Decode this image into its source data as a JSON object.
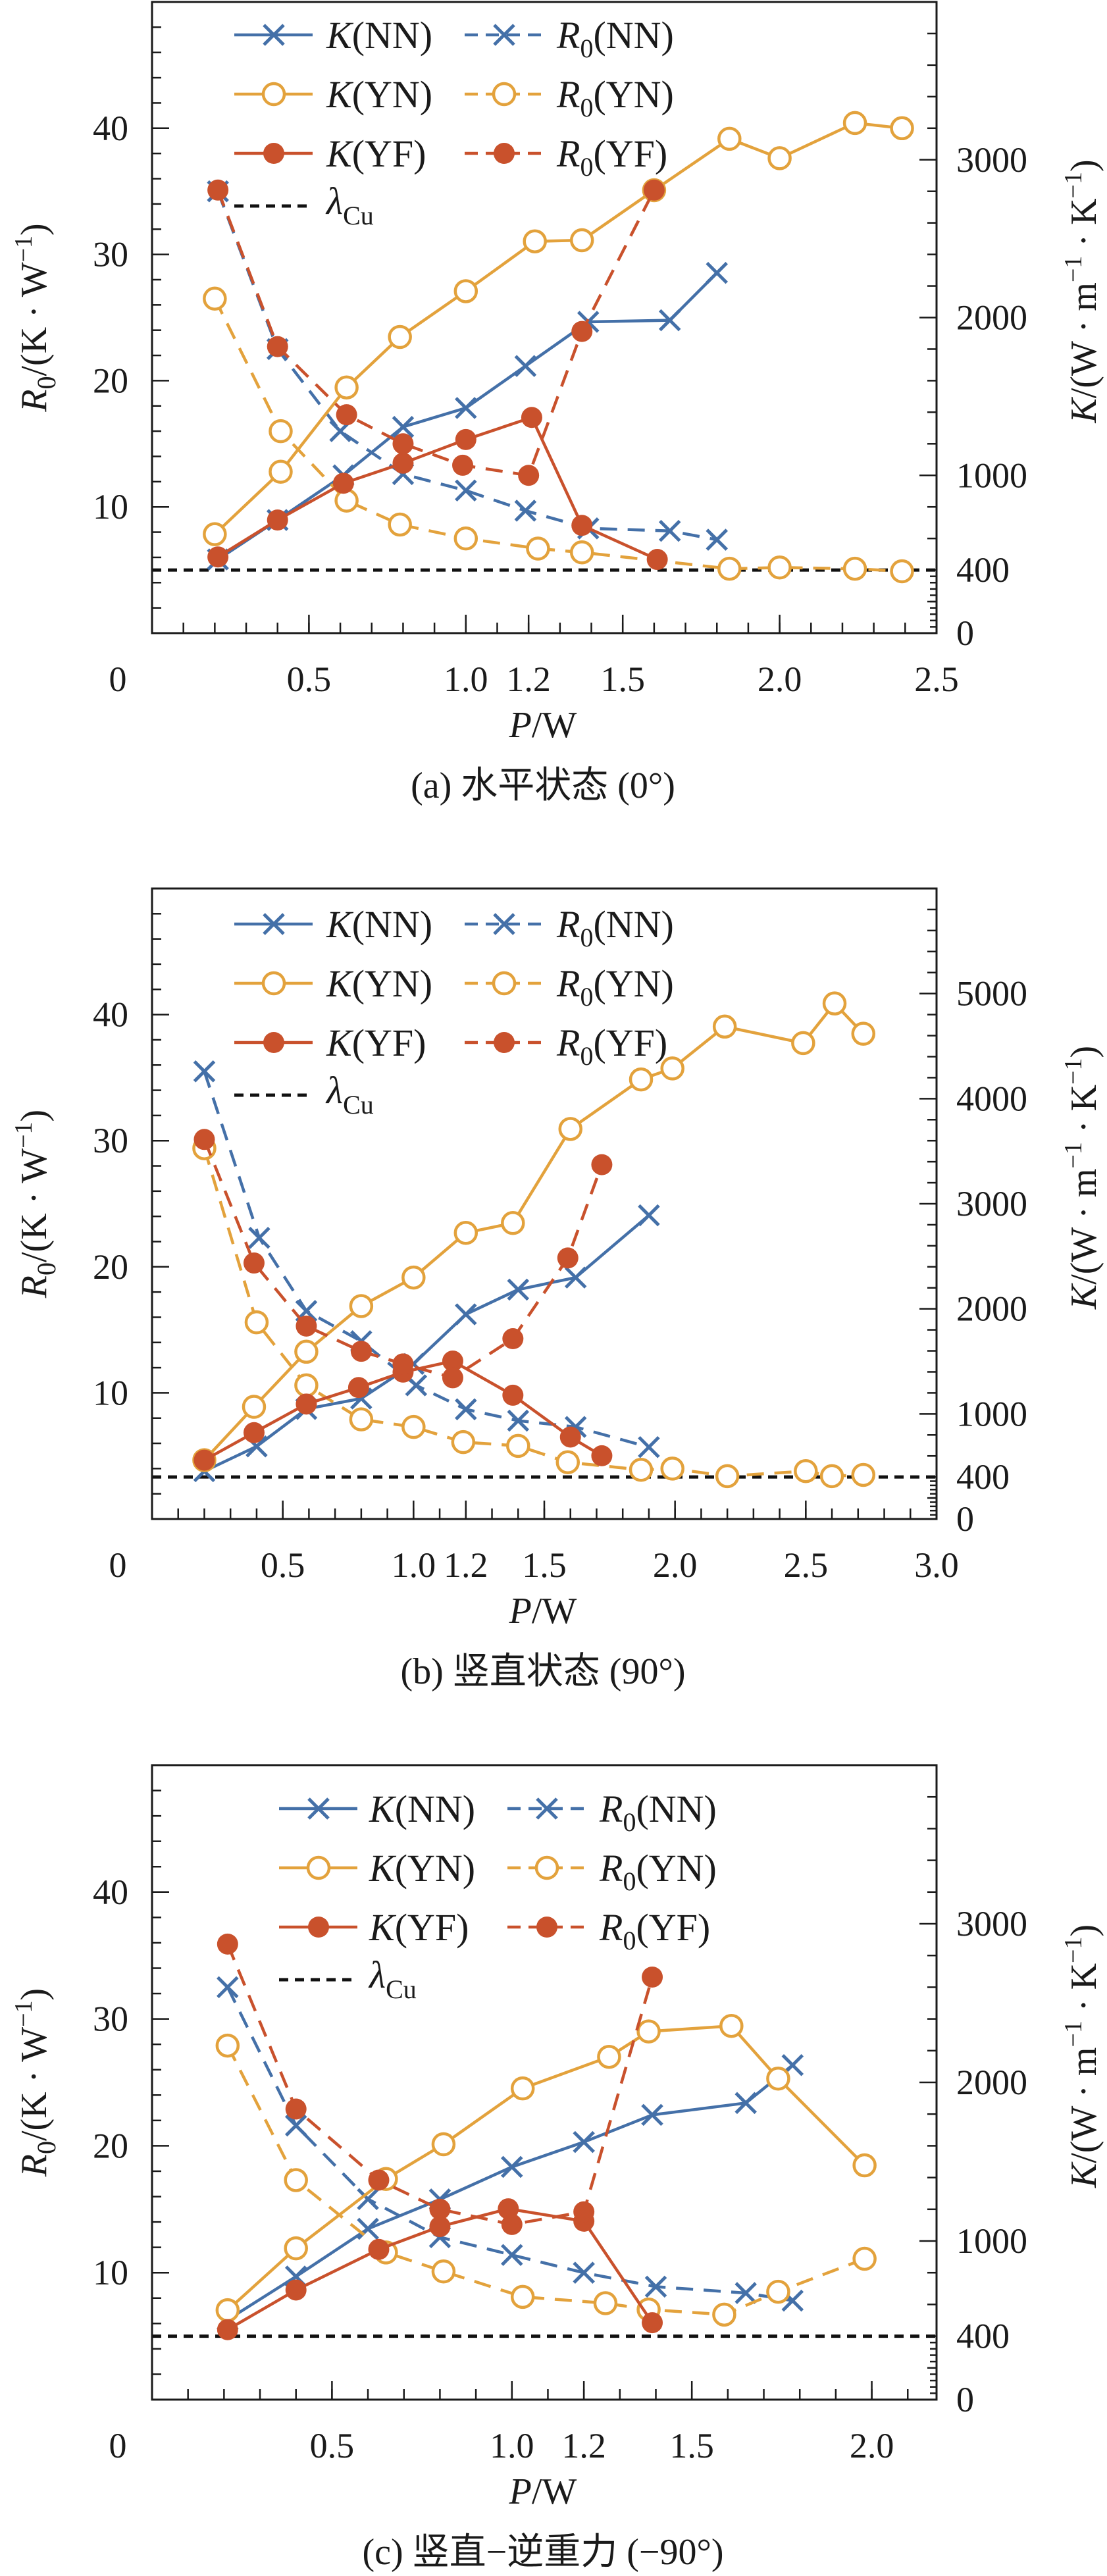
{
  "colors": {
    "NN": "#4470a8",
    "YN": "#e3a23c",
    "YF": "#c9512c",
    "lambda": "#111111"
  },
  "legend": {
    "entries": [
      {
        "key": "K_NN",
        "var": "K",
        "sub": "",
        "group": "(NN)"
      },
      {
        "key": "R0_NN",
        "var": "R",
        "sub": "0",
        "group": "(NN)"
      },
      {
        "key": "K_YN",
        "var": "K",
        "sub": "",
        "group": "(YN)"
      },
      {
        "key": "R0_YN",
        "var": "R",
        "sub": "0",
        "group": "(YN)"
      },
      {
        "key": "K_YF",
        "var": "K",
        "sub": "",
        "group": "(YF)"
      },
      {
        "key": "R0_YF",
        "var": "R",
        "sub": "0",
        "group": "(YF)"
      }
    ],
    "lambda": {
      "var": "λ",
      "sub": "Cu"
    }
  },
  "axis_titles": {
    "xlabel": {
      "var": "P",
      "rest": "/W"
    },
    "ylabel": {
      "var": "R",
      "sub": "0",
      "rest": "/(K · W",
      "sup": "−1",
      "end": ")"
    },
    "y2label": {
      "var": "K",
      "rest": "/(W · m",
      "sup": "−1",
      "mid": " · K",
      "sup2": "−1",
      "end": ")"
    }
  },
  "chart_data": [
    {
      "type": "line",
      "caption": "(a) 水平状态 (0°)",
      "xlabel": "P/W",
      "ylabel": "R0/(K·W−1)",
      "y2label": "K/(W·m−1·K−1)",
      "xlim": [
        0,
        2.5
      ],
      "ylim": [
        0,
        50
      ],
      "y2lim": [
        0,
        4000
      ],
      "xticks": [
        "0",
        "0.5",
        "1.0",
        "1.2",
        "1.5",
        "2.0",
        "2.5"
      ],
      "yticks": [
        "10",
        "20",
        "30",
        "40"
      ],
      "y2ticks": [
        "0",
        "400",
        "1000",
        "2000",
        "3000"
      ],
      "lambda_cu_K": 400,
      "series": [
        {
          "name": "K(NN)",
          "axis": "K",
          "group": "NN",
          "marker": "x",
          "dash": false,
          "x": [
            0.21,
            0.4,
            0.61,
            0.8,
            1.0,
            1.19,
            1.39,
            1.65,
            1.8
          ],
          "y": [
            467,
            717,
            1000,
            1307,
            1427,
            1693,
            1973,
            1983,
            2283
          ]
        },
        {
          "name": "R0(NN)",
          "axis": "R0",
          "group": "NN",
          "marker": "x",
          "dash": true,
          "x": [
            0.21,
            0.4,
            0.6,
            0.8,
            1.0,
            1.19,
            1.39,
            1.65,
            1.8
          ],
          "y": [
            35.0,
            22.5,
            16.0,
            12.6,
            11.3,
            9.7,
            8.3,
            8.1,
            7.4
          ]
        },
        {
          "name": "K(YN)",
          "axis": "K",
          "group": "YN",
          "marker": "o",
          "dash": false,
          "x": [
            0.2,
            0.41,
            0.62,
            0.79,
            1.0,
            1.22,
            1.37,
            1.6,
            1.84,
            2.0,
            2.24,
            2.39
          ],
          "y": [
            627,
            1023,
            1557,
            1877,
            2167,
            2483,
            2490,
            2807,
            3133,
            3010,
            3233,
            3200
          ]
        },
        {
          "name": "R0(YN)",
          "axis": "R0",
          "group": "YN",
          "marker": "o",
          "dash": true,
          "x": [
            0.2,
            0.41,
            0.62,
            0.79,
            1.0,
            1.23,
            1.37,
            1.84,
            2.0,
            2.24,
            2.39
          ],
          "y": [
            26.5,
            16.0,
            10.5,
            8.6,
            7.5,
            6.7,
            6.4,
            5.1,
            5.2,
            5.1,
            4.9
          ]
        },
        {
          "name": "K(YF)",
          "axis": "K",
          "group": "YF",
          "marker": "dot",
          "dash": false,
          "x": [
            0.21,
            0.4,
            0.61,
            0.8,
            1.0,
            1.21,
            1.37,
            1.61
          ],
          "y": [
            483,
            717,
            950,
            1077,
            1227,
            1367,
            683,
            467
          ]
        },
        {
          "name": "R0(YF)",
          "axis": "R0",
          "group": "YF",
          "marker": "dot",
          "dash": true,
          "x": [
            0.21,
            0.4,
            0.62,
            0.8,
            0.99,
            1.2,
            1.37,
            1.6
          ],
          "y": [
            35.1,
            22.7,
            17.3,
            15.0,
            13.3,
            12.5,
            23.9,
            35.1
          ]
        }
      ]
    },
    {
      "type": "line",
      "caption": "(b) 竖直状态 (90°)",
      "xlabel": "P/W",
      "ylabel": "R0/(K·W−1)",
      "y2label": "K/(W·m−1·K−1)",
      "xlim": [
        0,
        3.0
      ],
      "ylim": [
        0,
        50
      ],
      "y2lim": [
        0,
        6000
      ],
      "xticks": [
        "0",
        "0.5",
        "1.0",
        "1.2",
        "1.5",
        "2.0",
        "2.5",
        "3.0"
      ],
      "yticks": [
        "10",
        "20",
        "30",
        "40"
      ],
      "y2ticks": [
        "0",
        "400",
        "1000",
        "2000",
        "3000",
        "4000",
        "5000"
      ],
      "lambda_cu_K": 400,
      "series": [
        {
          "name": "K(NN)",
          "axis": "K",
          "group": "NN",
          "marker": "x",
          "dash": false,
          "x": [
            0.2,
            0.4,
            0.59,
            0.8,
            1.0,
            1.2,
            1.4,
            1.62,
            1.9
          ],
          "y": [
            455,
            691,
            1047,
            1147,
            1476,
            1948,
            2183,
            2298,
            2890
          ]
        },
        {
          "name": "R0(NN)",
          "axis": "R0",
          "group": "NN",
          "marker": "x",
          "dash": true,
          "x": [
            0.2,
            0.41,
            0.59,
            0.8,
            1.01,
            1.2,
            1.4,
            1.62,
            1.9
          ],
          "y": [
            35.5,
            22.3,
            16.5,
            14.1,
            10.6,
            8.7,
            7.8,
            7.3,
            5.7
          ]
        },
        {
          "name": "K(YN)",
          "axis": "K",
          "group": "YN",
          "marker": "o",
          "dash": false,
          "x": [
            0.2,
            0.39,
            0.59,
            0.8,
            1.0,
            1.2,
            1.38,
            1.6,
            1.87,
            1.99,
            2.19,
            2.49,
            2.61,
            2.72
          ],
          "y": [
            560,
            1068,
            1592,
            2026,
            2298,
            2723,
            2817,
            3712,
            4183,
            4288,
            4686,
            4529,
            4906,
            4618
          ]
        },
        {
          "name": "R0(YN)",
          "axis": "R0",
          "group": "YN",
          "marker": "o",
          "dash": true,
          "x": [
            0.2,
            0.4,
            0.59,
            0.8,
            1.0,
            1.19,
            1.4,
            1.59,
            1.87,
            1.99,
            2.2,
            2.5,
            2.6,
            2.72
          ],
          "y": [
            29.4,
            15.6,
            10.6,
            7.9,
            7.3,
            6.1,
            5.8,
            4.5,
            3.9,
            4.0,
            3.4,
            3.8,
            3.4,
            3.5
          ]
        },
        {
          "name": "K(YF)",
          "axis": "K",
          "group": "YF",
          "marker": "dot",
          "dash": false,
          "x": [
            0.2,
            0.39,
            0.59,
            0.79,
            0.96,
            1.15,
            1.38,
            1.6,
            1.72
          ],
          "y": [
            560,
            822,
            1094,
            1251,
            1398,
            1503,
            1178,
            780,
            602
          ]
        },
        {
          "name": "R0(YF)",
          "axis": "R0",
          "group": "YF",
          "marker": "dot",
          "dash": true,
          "x": [
            0.2,
            0.39,
            0.59,
            0.8,
            0.96,
            1.15,
            1.38,
            1.59,
            1.72
          ],
          "y": [
            30.1,
            20.3,
            15.3,
            13.3,
            12.3,
            11.2,
            14.3,
            20.7,
            28.1
          ]
        }
      ]
    },
    {
      "type": "line",
      "caption": "(c) 竖直−逆重力 (−90°)",
      "xlabel": "P/W",
      "ylabel": "R0/(K·W−1)",
      "y2label": "K/(W·m−1·K−1)",
      "xlim": [
        0,
        2.18
      ],
      "ylim": [
        0,
        50
      ],
      "y2lim": [
        0,
        4000
      ],
      "xticks": [
        "0",
        "0.5",
        "1.0",
        "1.2",
        "1.5",
        "2.0"
      ],
      "yticks": [
        "10",
        "20",
        "30",
        "40"
      ],
      "y2ticks": [
        "0",
        "400",
        "1000",
        "2000",
        "3000"
      ],
      "lambda_cu_K": 400,
      "series": [
        {
          "name": "K(NN)",
          "axis": "K",
          "group": "NN",
          "marker": "x",
          "dash": false,
          "x": [
            0.21,
            0.4,
            0.6,
            0.8,
            1.0,
            1.2,
            1.39,
            1.65,
            1.78
          ],
          "y": [
            503,
            776,
            1077,
            1262,
            1467,
            1624,
            1795,
            1870,
            2109
          ]
        },
        {
          "name": "R0(NN)",
          "axis": "R0",
          "group": "NN",
          "marker": "x",
          "dash": true,
          "x": [
            0.21,
            0.4,
            0.6,
            0.8,
            1.0,
            1.2,
            1.4,
            1.65,
            1.78
          ],
          "y": [
            32.5,
            21.6,
            15.8,
            12.8,
            11.4,
            10.0,
            8.9,
            8.4,
            7.8
          ]
        },
        {
          "name": "K(YN)",
          "axis": "K",
          "group": "YN",
          "marker": "o",
          "dash": false,
          "x": [
            0.21,
            0.4,
            0.65,
            0.81,
            1.03,
            1.27,
            1.38,
            1.61,
            1.74,
            1.98
          ],
          "y": [
            564,
            954,
            1391,
            1610,
            1962,
            2161,
            2321,
            2356,
            2024,
            1477
          ]
        },
        {
          "name": "R0(YN)",
          "axis": "R0",
          "group": "YN",
          "marker": "o",
          "dash": true,
          "x": [
            0.21,
            0.4,
            0.65,
            0.81,
            1.03,
            1.26,
            1.38,
            1.59,
            1.74,
            1.98
          ],
          "y": [
            27.9,
            17.3,
            11.6,
            10.1,
            8.1,
            7.6,
            7.1,
            6.7,
            8.5,
            11.1
          ]
        },
        {
          "name": "K(YF)",
          "axis": "K",
          "group": "YF",
          "marker": "dot",
          "dash": false,
          "x": [
            0.21,
            0.4,
            0.63,
            0.8,
            0.99,
            1.2,
            1.39
          ],
          "y": [
            441,
            691,
            947,
            1091,
            1203,
            1125,
            485
          ]
        },
        {
          "name": "R0(YF)",
          "axis": "R0",
          "group": "YF",
          "marker": "dot",
          "dash": true,
          "x": [
            0.21,
            0.4,
            0.63,
            0.8,
            1.0,
            1.2,
            1.39
          ],
          "y": [
            35.9,
            22.9,
            17.3,
            15.0,
            13.8,
            14.8,
            33.3
          ]
        }
      ]
    }
  ]
}
